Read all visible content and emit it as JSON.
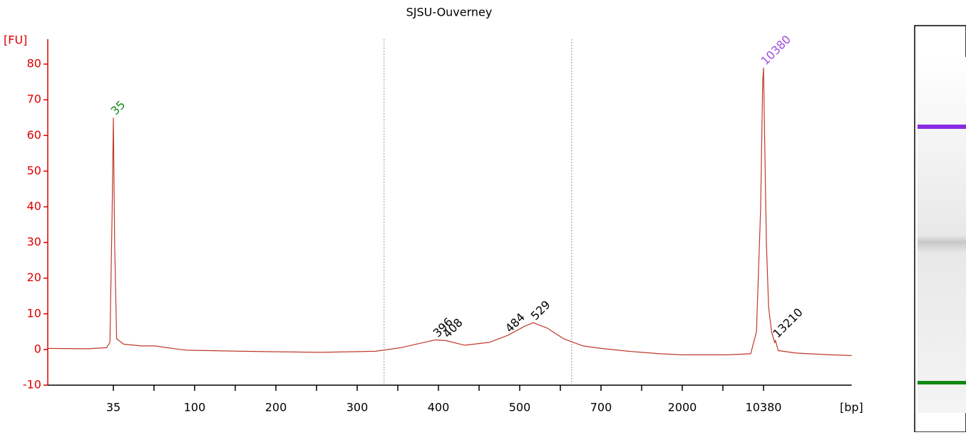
{
  "chart_data": {
    "type": "line",
    "title": "SJSU-Ouverney",
    "y_label": "[FU]",
    "x_label": "[bp]",
    "color": "#c0392b",
    "xlim": [
      15,
      62000
    ],
    "xticks": [
      35,
      100,
      200,
      300,
      400,
      500,
      700,
      2000,
      10380
    ],
    "ylim": [
      -10,
      87
    ],
    "yticks": [
      -10,
      0,
      10,
      20,
      30,
      40,
      50,
      60,
      70,
      80
    ],
    "region_bounds": [
      330,
      620
    ],
    "x": [
      15,
      25,
      32,
      33.5,
      34.5,
      35,
      35.6,
      36.5,
      40,
      50,
      60,
      70,
      90,
      150,
      250,
      320,
      350,
      380,
      396,
      408,
      430,
      460,
      484,
      510,
      529,
      560,
      600,
      650,
      700,
      1000,
      1500,
      2000,
      5000,
      8000,
      9000,
      9800,
      10200,
      10380,
      10600,
      11000,
      11500,
      12200,
      13000,
      13210,
      14000,
      20000,
      40000,
      62000
    ],
    "values": [
      0.3,
      0.2,
      0.5,
      2,
      40,
      65,
      30,
      3,
      1.5,
      1.0,
      1.0,
      0.5,
      -0.2,
      -0.5,
      -0.8,
      -0.5,
      0.5,
      2,
      2.7,
      2.5,
      1.2,
      2,
      4,
      6.5,
      7.5,
      6,
      3,
      1,
      0.3,
      -0.5,
      -1.2,
      -1.5,
      -1.5,
      -1.2,
      5,
      40,
      75,
      79,
      60,
      30,
      12,
      5,
      2,
      2.5,
      -0.3,
      -1.0,
      -1.5,
      -1.7
    ],
    "annotations": [
      {
        "text": "35",
        "x": 35,
        "y": 65,
        "color": "#1a8a1a"
      },
      {
        "text": "396",
        "x": 396,
        "y": 2.7,
        "color": "#000000"
      },
      {
        "text": "408",
        "x": 408,
        "y": 2.5,
        "color": "#000000"
      },
      {
        "text": "484",
        "x": 484,
        "y": 4,
        "color": "#000000"
      },
      {
        "text": "529",
        "x": 529,
        "y": 7.5,
        "color": "#000000"
      },
      {
        "text": "10380",
        "x": 10380,
        "y": 79,
        "color": "#9b4de0"
      },
      {
        "text": "13210",
        "x": 13210,
        "y": 2.5,
        "color": "#000000"
      }
    ]
  }
}
